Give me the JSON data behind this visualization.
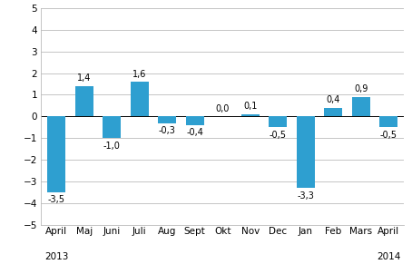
{
  "categories": [
    "April",
    "Maj",
    "Juni",
    "Juli",
    "Aug",
    "Sept",
    "Okt",
    "Nov",
    "Dec",
    "Jan",
    "Feb",
    "Mars",
    "April"
  ],
  "values": [
    -3.5,
    1.4,
    -1.0,
    1.6,
    -0.3,
    -0.4,
    0.0,
    0.1,
    -0.5,
    -3.3,
    0.4,
    0.9,
    -0.5
  ],
  "labels": [
    "-3,5",
    "1,4",
    "-1,0",
    "1,6",
    "-0,3",
    "-0,4",
    "0,0",
    "0,1",
    "-0,5",
    "-3,3",
    "0,4",
    "0,9",
    "-0,5"
  ],
  "bar_color": "#2E9FD0",
  "ylim": [
    -5,
    5
  ],
  "yticks": [
    -5,
    -4,
    -3,
    -2,
    -1,
    0,
    1,
    2,
    3,
    4,
    5
  ],
  "background_color": "#ffffff",
  "grid_color": "#bbbbbb",
  "bar_width": 0.65,
  "label_fontsize": 7,
  "tick_fontsize": 7.5,
  "year_left": "2013",
  "year_right": "2014"
}
